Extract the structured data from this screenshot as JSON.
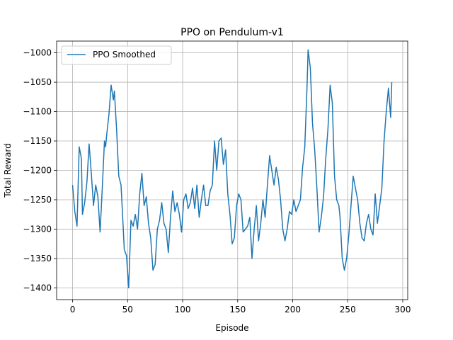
{
  "chart_data": {
    "type": "line",
    "title": "PPO on Pendulum-v1",
    "xlabel": "Episode",
    "ylabel": "Total Reward",
    "xlim": [
      -14.5,
      304.5
    ],
    "ylim": [
      -1420,
      -980
    ],
    "xticks": [
      0,
      50,
      100,
      150,
      200,
      250,
      300
    ],
    "yticks": [
      -1400,
      -1350,
      -1300,
      -1250,
      -1200,
      -1150,
      -1100,
      -1050,
      -1000
    ],
    "xtick_labels": [
      "0",
      "50",
      "100",
      "150",
      "200",
      "250",
      "300"
    ],
    "ytick_labels": [
      "−1400",
      "−1350",
      "−1300",
      "−1250",
      "−1200",
      "−1150",
      "−1100",
      "−1050",
      "−1000"
    ],
    "grid": true,
    "legend_position": "top-left",
    "series": [
      {
        "name": "PPO Smoothed",
        "color": "#1f77b4",
        "x": [
          0,
          2,
          4,
          6,
          8,
          9,
          11,
          13,
          15,
          17,
          19,
          21,
          23,
          25,
          27,
          29,
          30,
          31,
          33,
          35,
          37,
          38,
          40,
          42,
          44,
          45,
          47,
          49,
          51,
          53,
          55,
          57,
          59,
          61,
          63,
          65,
          67,
          69,
          71,
          73,
          75,
          77,
          79,
          81,
          83,
          85,
          87,
          89,
          91,
          93,
          95,
          97,
          99,
          101,
          103,
          105,
          107,
          109,
          111,
          113,
          115,
          117,
          119,
          121,
          123,
          125,
          127,
          129,
          131,
          133,
          135,
          137,
          139,
          141,
          143,
          145,
          147,
          149,
          151,
          153,
          155,
          157,
          159,
          161,
          163,
          165,
          167,
          169,
          171,
          173,
          175,
          177,
          179,
          181,
          183,
          185,
          187,
          189,
          191,
          193,
          195,
          197,
          199,
          201,
          203,
          205,
          207,
          209,
          211,
          213,
          214,
          216,
          218,
          220,
          222,
          224,
          226,
          228,
          230,
          232,
          234,
          236,
          238,
          240,
          242,
          243,
          245,
          247,
          249,
          251,
          253,
          255,
          257,
          259,
          261,
          263,
          265,
          267,
          269,
          271,
          273,
          275,
          277,
          279,
          281,
          283,
          285,
          287,
          289,
          290
        ],
        "y": [
          -1225,
          -1270,
          -1295,
          -1160,
          -1180,
          -1275,
          -1255,
          -1220,
          -1155,
          -1205,
          -1260,
          -1225,
          -1245,
          -1305,
          -1230,
          -1150,
          -1160,
          -1140,
          -1105,
          -1055,
          -1080,
          -1065,
          -1130,
          -1210,
          -1225,
          -1260,
          -1335,
          -1345,
          -1400,
          -1285,
          -1295,
          -1275,
          -1300,
          -1240,
          -1205,
          -1260,
          -1245,
          -1290,
          -1315,
          -1370,
          -1360,
          -1300,
          -1285,
          -1255,
          -1290,
          -1300,
          -1340,
          -1280,
          -1235,
          -1270,
          -1255,
          -1275,
          -1305,
          -1250,
          -1240,
          -1265,
          -1255,
          -1230,
          -1265,
          -1225,
          -1280,
          -1250,
          -1225,
          -1260,
          -1260,
          -1235,
          -1225,
          -1150,
          -1200,
          -1150,
          -1145,
          -1190,
          -1165,
          -1240,
          -1275,
          -1325,
          -1315,
          -1260,
          -1240,
          -1250,
          -1305,
          -1300,
          -1295,
          -1280,
          -1350,
          -1300,
          -1260,
          -1320,
          -1290,
          -1250,
          -1280,
          -1225,
          -1175,
          -1200,
          -1225,
          -1195,
          -1215,
          -1250,
          -1300,
          -1320,
          -1300,
          -1270,
          -1275,
          -1250,
          -1270,
          -1260,
          -1250,
          -1195,
          -1160,
          -1060,
          -995,
          -1025,
          -1120,
          -1165,
          -1230,
          -1305,
          -1280,
          -1245,
          -1180,
          -1130,
          -1055,
          -1085,
          -1210,
          -1250,
          -1260,
          -1280,
          -1350,
          -1370,
          -1350,
          -1310,
          -1260,
          -1210,
          -1230,
          -1250,
          -1290,
          -1315,
          -1320,
          -1290,
          -1275,
          -1300,
          -1310,
          -1240,
          -1290,
          -1260,
          -1230,
          -1150,
          -1100,
          -1060,
          -1110,
          -1050
        ]
      }
    ]
  }
}
